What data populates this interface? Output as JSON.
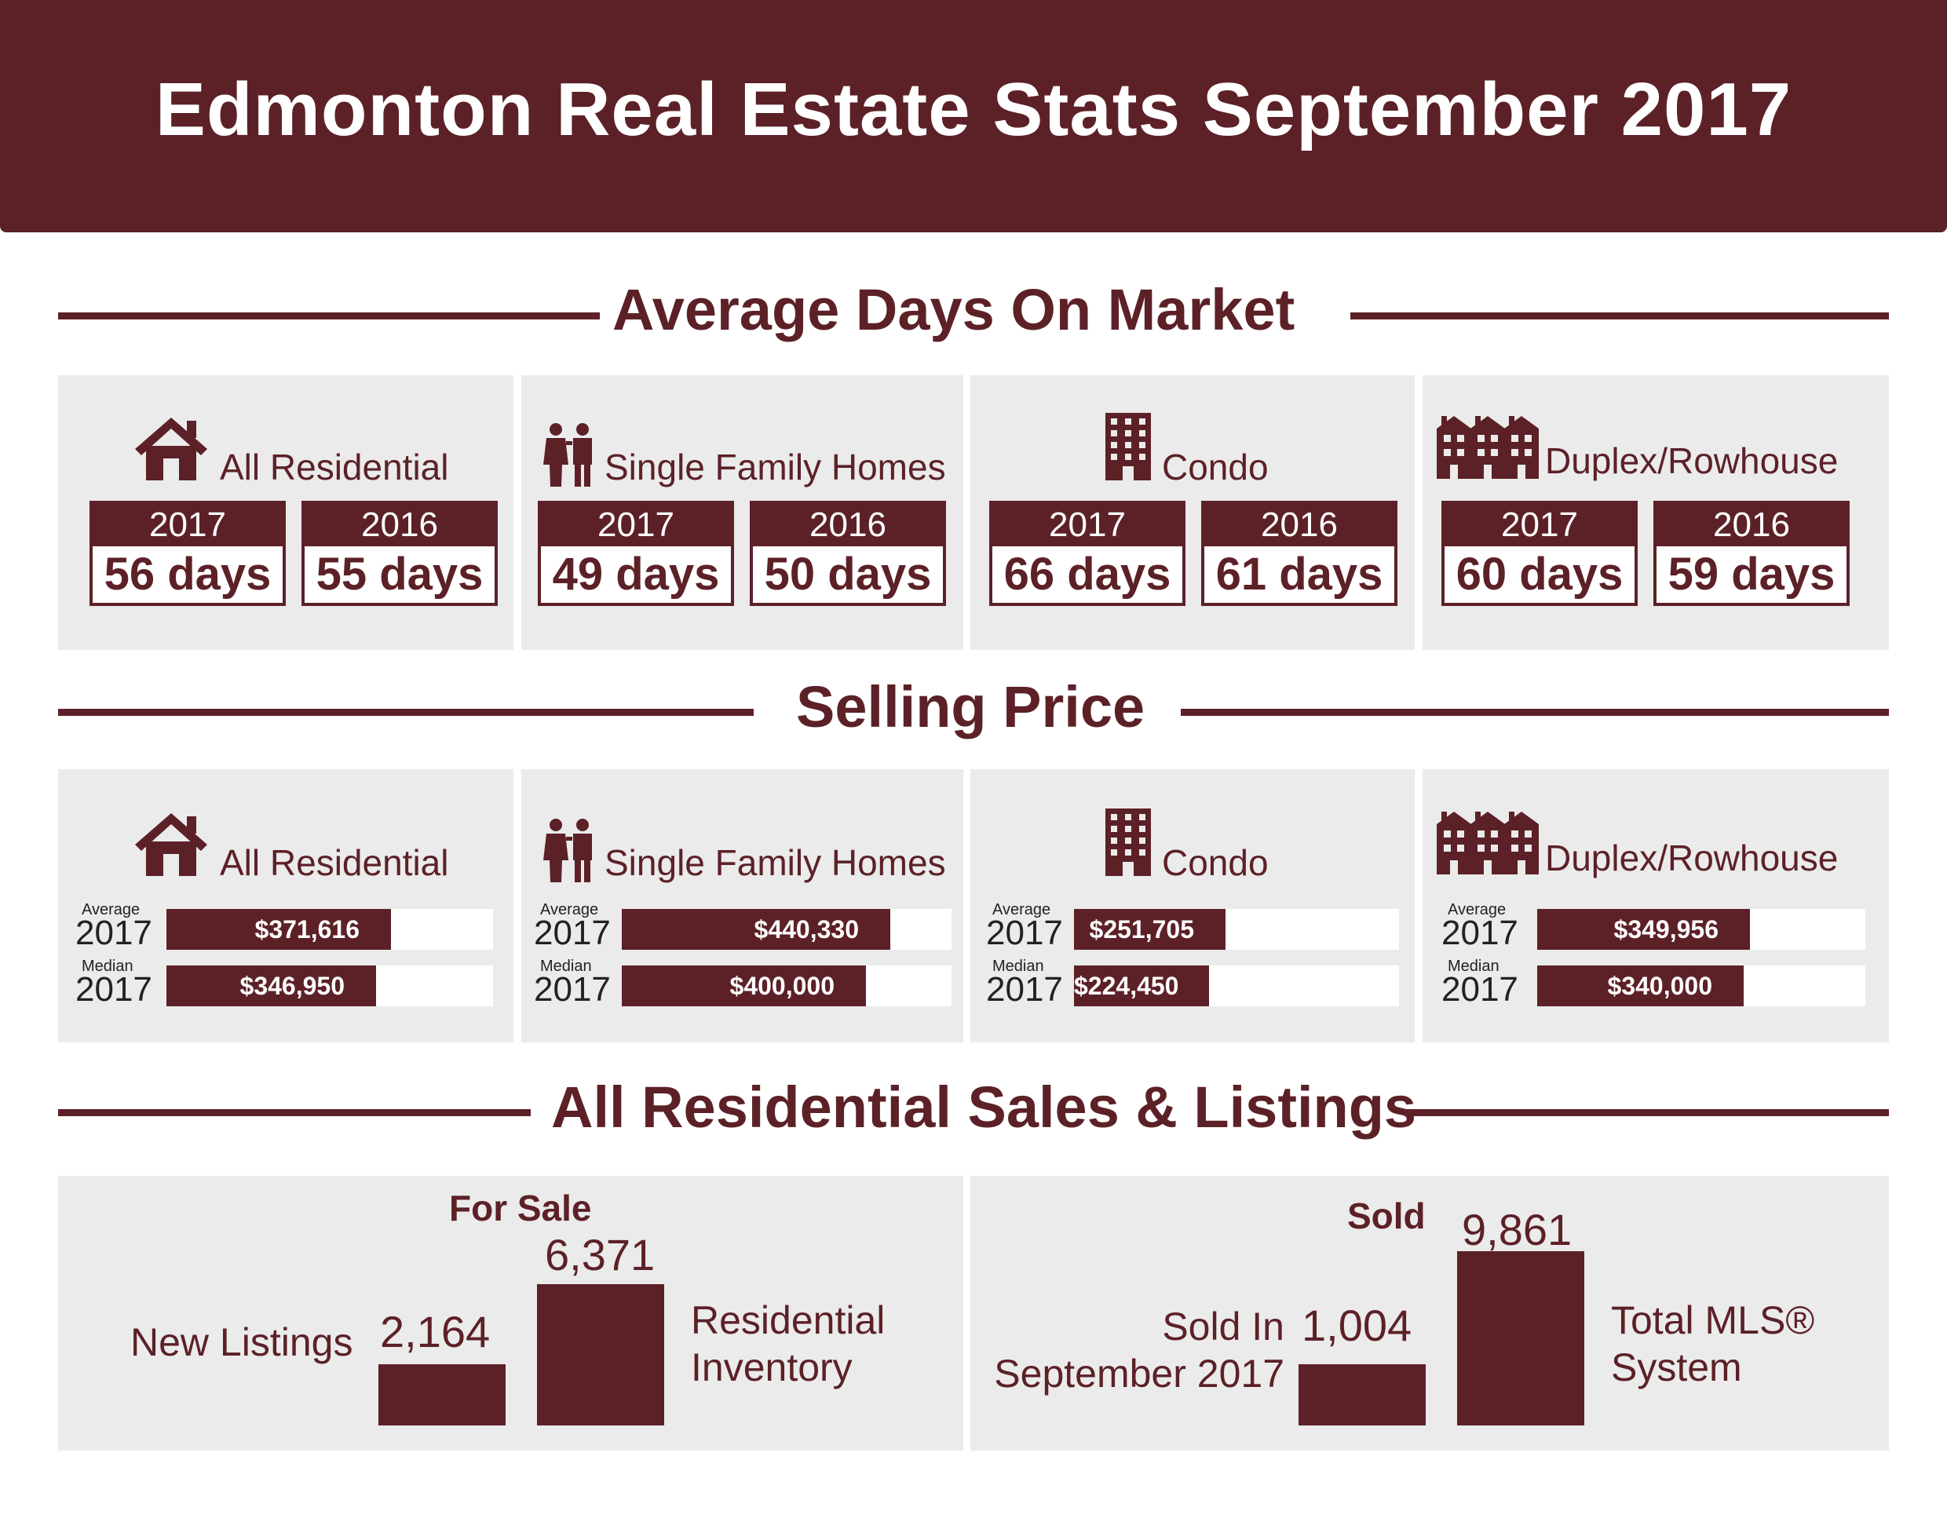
{
  "title": "Edmonton Real Estate Stats September 2017",
  "sections": {
    "days": "Average Days On Market",
    "price": "Selling Price",
    "sales": "All Residential Sales & Listings"
  },
  "categories": [
    {
      "label": "All Residential",
      "icon": "house-icon",
      "days": [
        {
          "year": "2017",
          "value": "56 days"
        },
        {
          "year": "2016",
          "value": "55 days"
        }
      ],
      "prices": [
        {
          "kind": "Average",
          "year": "2017",
          "value": "$371,616"
        },
        {
          "kind": "Median",
          "year": "2017",
          "value": "$346,950"
        }
      ]
    },
    {
      "label": "Single Family Homes",
      "icon": "couple-icon",
      "days": [
        {
          "year": "2017",
          "value": "49 days"
        },
        {
          "year": "2016",
          "value": "50 days"
        }
      ],
      "prices": [
        {
          "kind": "Average",
          "year": "2017",
          "value": "$440,330"
        },
        {
          "kind": "Median",
          "year": "2017",
          "value": "$400,000"
        }
      ]
    },
    {
      "label": "Condo",
      "icon": "condo-building-icon",
      "days": [
        {
          "year": "2017",
          "value": "66 days"
        },
        {
          "year": "2016",
          "value": "61 days"
        }
      ],
      "prices": [
        {
          "kind": "Average",
          "year": "2017",
          "value": "$251,705"
        },
        {
          "kind": "Median",
          "year": "2017",
          "value": "$224,450"
        }
      ]
    },
    {
      "label": "Duplex/Rowhouse",
      "icon": "rowhouse-icon",
      "days": [
        {
          "year": "2017",
          "value": "60 days"
        },
        {
          "year": "2016",
          "value": "59 days"
        }
      ],
      "prices": [
        {
          "kind": "Average",
          "year": "2017",
          "value": "$349,956"
        },
        {
          "kind": "Median",
          "year": "2017",
          "value": "$340,000"
        }
      ]
    }
  ],
  "for_sale": {
    "heading": "For Sale",
    "new_listings": {
      "label": "New Listings",
      "value": "2,164"
    },
    "inventory": {
      "label_line1": "Residential",
      "label_line2": "Inventory",
      "value": "6,371"
    }
  },
  "sold": {
    "heading": "Sold",
    "sold_month": {
      "label_line1": "Sold In",
      "label_line2": "September 2017",
      "value": "1,004"
    },
    "total_mls": {
      "label_line1": "Total MLS®",
      "label_line2": "System",
      "value": "9,861"
    }
  },
  "colors": {
    "primary": "#5c2127",
    "panel": "#ebebeb",
    "text_dark": "#222222"
  },
  "chart_data": [
    {
      "type": "table",
      "title": "Average Days On Market",
      "columns": [
        "Category",
        "2017",
        "2016"
      ],
      "rows": [
        [
          "All Residential",
          56,
          55
        ],
        [
          "Single Family Homes",
          49,
          50
        ],
        [
          "Condo",
          66,
          61
        ],
        [
          "Duplex/Rowhouse",
          60,
          59
        ]
      ]
    },
    {
      "type": "bar",
      "title": "Selling Price",
      "categories": [
        "All Residential",
        "Single Family Homes",
        "Condo",
        "Duplex/Rowhouse"
      ],
      "series": [
        {
          "name": "Average",
          "values": [
            371616,
            440330,
            251705,
            349956
          ]
        },
        {
          "name": "Median",
          "values": [
            346950,
            400000,
            224450,
            340000
          ]
        }
      ]
    },
    {
      "type": "bar",
      "title": "For Sale",
      "categories": [
        "New Listings",
        "Residential Inventory"
      ],
      "values": [
        2164,
        6371
      ]
    },
    {
      "type": "bar",
      "title": "Sold",
      "categories": [
        "Sold In September 2017",
        "Total MLS® System"
      ],
      "values": [
        1004,
        9861
      ]
    }
  ]
}
